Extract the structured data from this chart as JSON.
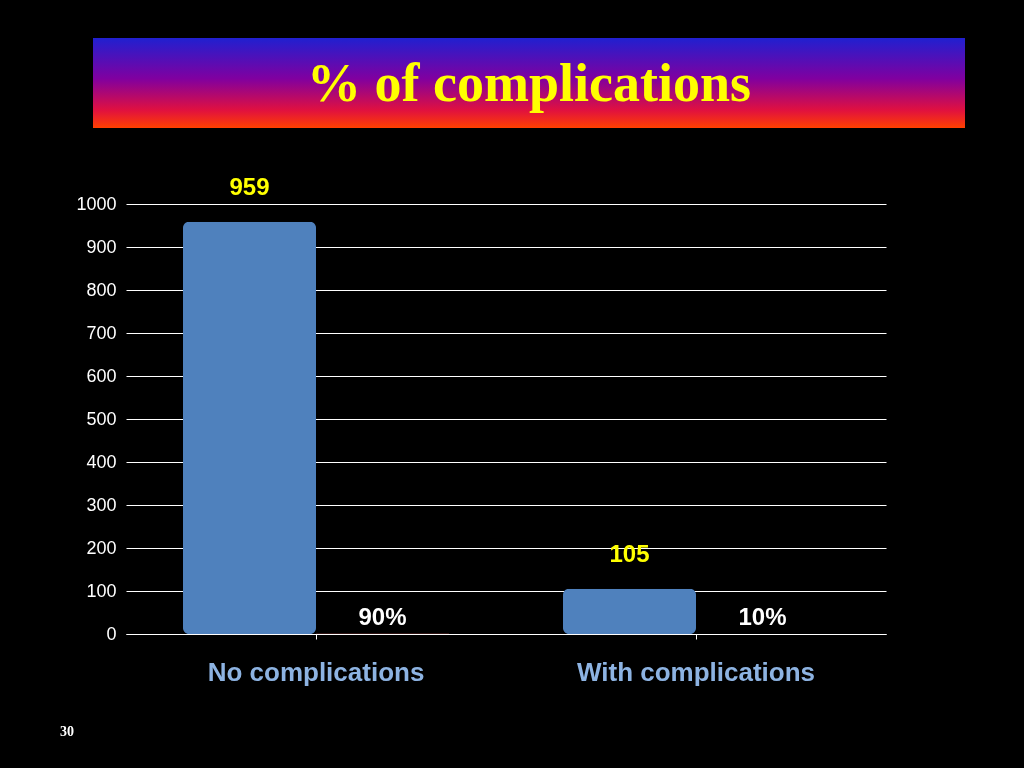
{
  "chart_data": {
    "type": "bar",
    "title": "% of complications",
    "categories": [
      "No complications",
      "With complications"
    ],
    "series": [
      {
        "color": "#4f81bd",
        "values": [
          959,
          105
        ],
        "value_labels": [
          "959",
          "105"
        ]
      },
      {
        "color": "#c0504d",
        "values": [
          0.9,
          0.1
        ],
        "value_labels": [
          "90%",
          "10%"
        ]
      }
    ],
    "ylim": [
      0,
      1000
    ],
    "yticks": [
      0,
      100,
      200,
      300,
      400,
      500,
      600,
      700,
      800,
      900,
      1000
    ],
    "grid": "y",
    "legend": false,
    "annotations": [
      "30"
    ]
  }
}
